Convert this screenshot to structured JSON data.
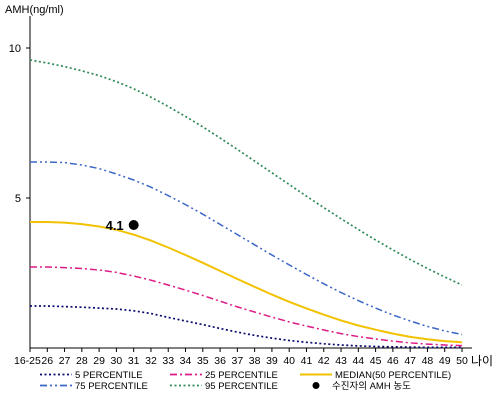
{
  "chart_data": {
    "type": "line",
    "ylabel": "AMH(ng/ml)",
    "xlabel": "나이",
    "ylim": [
      0,
      11
    ],
    "y_ticks": [
      5,
      10
    ],
    "x_categories": [
      "16-25",
      "26",
      "27",
      "28",
      "29",
      "30",
      "31",
      "32",
      "33",
      "34",
      "35",
      "36",
      "37",
      "38",
      "39",
      "40",
      "41",
      "42",
      "43",
      "44",
      "45",
      "46",
      "47",
      "48",
      "49",
      "50"
    ],
    "series": [
      {
        "name": "5 PERCENTILE",
        "color": "#0a0a6e",
        "style": "dotted",
        "values": [
          1.4,
          1.4,
          1.38,
          1.36,
          1.33,
          1.3,
          1.24,
          1.15,
          1.02,
          0.9,
          0.78,
          0.65,
          0.53,
          0.42,
          0.33,
          0.25,
          0.19,
          0.14,
          0.1,
          0.07,
          0.05,
          0.04,
          0.03,
          0.02,
          0.02,
          0.02
        ]
      },
      {
        "name": "25 PERCENTILE",
        "color": "#dd1a86",
        "style": "dashdot",
        "values": [
          2.7,
          2.7,
          2.68,
          2.65,
          2.6,
          2.52,
          2.4,
          2.26,
          2.1,
          1.93,
          1.75,
          1.56,
          1.37,
          1.2,
          1.03,
          0.87,
          0.73,
          0.6,
          0.48,
          0.38,
          0.3,
          0.23,
          0.17,
          0.13,
          0.1,
          0.08
        ]
      },
      {
        "name": "MEDIAN(50 PERCENTILE)",
        "color": "#f2c200",
        "style": "solid",
        "values": [
          4.2,
          4.2,
          4.18,
          4.13,
          4.05,
          3.94,
          3.78,
          3.58,
          3.35,
          3.1,
          2.84,
          2.57,
          2.3,
          2.04,
          1.78,
          1.54,
          1.32,
          1.11,
          0.92,
          0.75,
          0.61,
          0.48,
          0.37,
          0.29,
          0.23,
          0.19
        ]
      },
      {
        "name": "75 PERCENTILE",
        "color": "#3c66c6",
        "style": "dashdotdot",
        "values": [
          6.2,
          6.2,
          6.18,
          6.1,
          5.98,
          5.8,
          5.6,
          5.36,
          5.08,
          4.78,
          4.46,
          4.12,
          3.78,
          3.44,
          3.1,
          2.77,
          2.45,
          2.14,
          1.85,
          1.58,
          1.33,
          1.1,
          0.9,
          0.72,
          0.57,
          0.45
        ]
      },
      {
        "name": "95 PERCENTILE",
        "color": "#2f8a57",
        "style": "dotted",
        "values": [
          9.6,
          9.5,
          9.38,
          9.24,
          9.08,
          8.88,
          8.64,
          8.36,
          8.05,
          7.72,
          7.37,
          7.0,
          6.62,
          6.23,
          5.84,
          5.45,
          5.06,
          4.68,
          4.31,
          3.95,
          3.6,
          3.27,
          2.95,
          2.65,
          2.37,
          2.1
        ]
      }
    ],
    "patient_point": {
      "label": "수진자의 AMH 농도",
      "category": "31",
      "value": 4.1,
      "value_label": "4.1"
    }
  }
}
